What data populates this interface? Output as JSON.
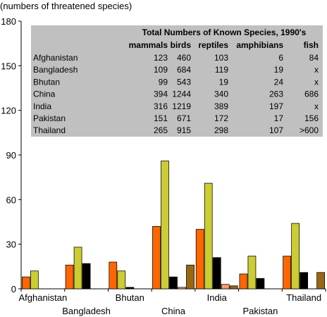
{
  "chart_data": {
    "type": "bar",
    "unit_label": "(numbers of threatened species)",
    "categories": [
      "Afghanistan",
      "Bangladesh",
      "Bhutan",
      "China",
      "India",
      "Pakistan",
      "Thailand"
    ],
    "ylim": [
      0,
      180
    ],
    "yticks": [
      0,
      30,
      60,
      90,
      120,
      150,
      180
    ],
    "grid": false,
    "series": [
      {
        "key": "mammals",
        "color": "#FF6600",
        "values": [
          8,
          16,
          18,
          42,
          40,
          10,
          22
        ]
      },
      {
        "key": "birds",
        "color": "#CCCC33",
        "values": [
          12,
          28,
          12,
          86,
          71,
          22,
          44
        ]
      },
      {
        "key": "reptiles",
        "color": "#000000",
        "values": [
          0,
          17,
          1,
          8,
          21,
          7,
          11
        ]
      },
      {
        "key": "amphibians",
        "color": "#FF9966",
        "values": [
          0,
          0,
          0,
          1,
          3,
          0,
          0
        ]
      },
      {
        "key": "fish",
        "color": "#996611",
        "values": [
          0,
          0,
          0,
          16,
          2,
          0,
          11
        ]
      }
    ]
  },
  "table": {
    "title": "Total Numbers of Known Species, 1990's",
    "headers": [
      "mammals",
      "birds",
      "reptiles",
      "amphibians",
      "fish"
    ],
    "rows": [
      {
        "country": "Afghanistan",
        "values": [
          "123",
          "460",
          "103",
          "6",
          "84"
        ]
      },
      {
        "country": "Bangladesh",
        "values": [
          "109",
          "684",
          "119",
          "19",
          "x"
        ]
      },
      {
        "country": "Bhutan",
        "values": [
          "99",
          "543",
          "19",
          "24",
          "x"
        ]
      },
      {
        "country": "China",
        "values": [
          "394",
          "1244",
          "340",
          "263",
          "686"
        ]
      },
      {
        "country": "India",
        "values": [
          "316",
          "1219",
          "389",
          "197",
          "x"
        ]
      },
      {
        "country": "Pakistan",
        "values": [
          "151",
          "671",
          "172",
          "17",
          "156"
        ]
      },
      {
        "country": "Thailand",
        "values": [
          "265",
          "915",
          "298",
          "107",
          ">600"
        ]
      }
    ]
  }
}
